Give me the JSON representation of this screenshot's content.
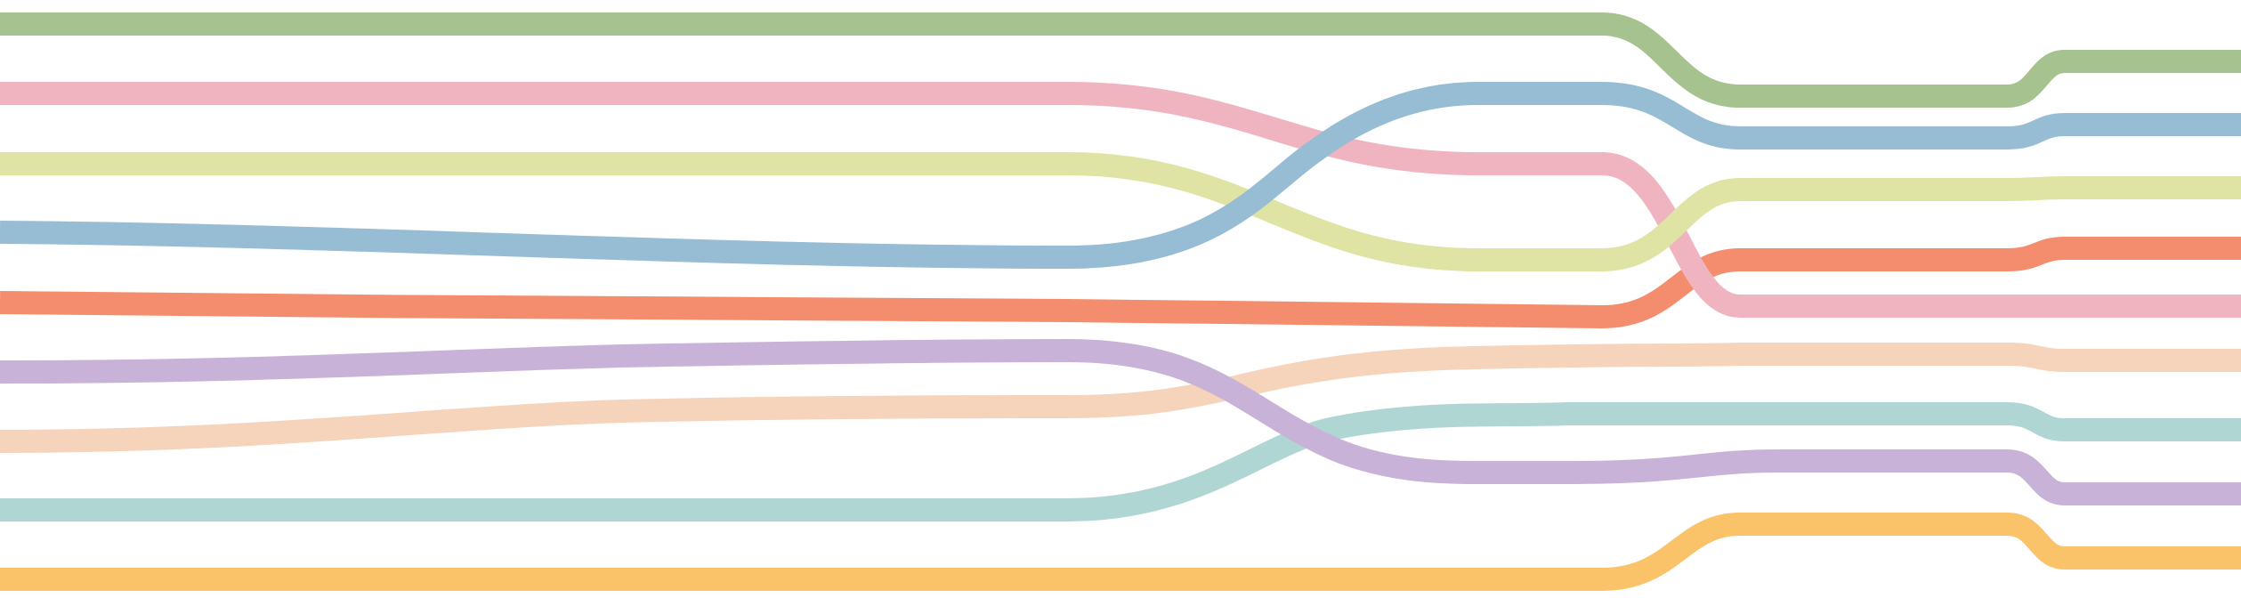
{
  "colors": {
    "green": "#a5c28f",
    "pink": "#f0b4c0",
    "yellow": "#dfe3a3",
    "blue": "#97bdd4",
    "orange": "#f38d6e",
    "purple": "#c9b2d7",
    "peach": "#f5d4bb",
    "teal": "#b0d6d4",
    "gold": "#fac36a",
    "white": "#f2f2f2",
    "background": "#ffffff"
  },
  "strands": [
    "green",
    "pink",
    "yellow",
    "blue",
    "orange",
    "purple",
    "peach",
    "teal",
    "gold"
  ]
}
